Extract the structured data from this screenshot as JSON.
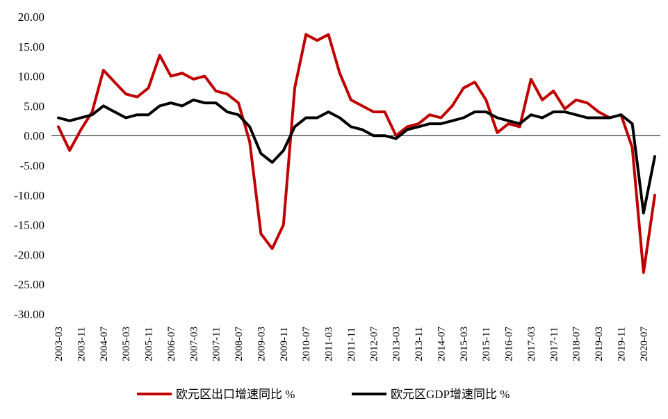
{
  "chart_data": {
    "type": "line",
    "title": "",
    "xlabel": "",
    "ylabel": "",
    "ylim": [
      -30,
      20
    ],
    "yticks": [
      "20.00",
      "15.00",
      "10.00",
      "5.00",
      "0.00",
      "-5.00",
      "-10.00",
      "-15.00",
      "-20.00",
      "-25.00",
      "-30.00"
    ],
    "ytick_values": [
      20,
      15,
      10,
      5,
      0,
      -5,
      -10,
      -15,
      -20,
      -25,
      -30
    ],
    "grid": false,
    "legend_position": "bottom",
    "x_tick_labels": [
      "2003-03",
      "2003-11",
      "2004-07",
      "2005-03",
      "2005-11",
      "2006-07",
      "2007-03",
      "2007-11",
      "2008-07",
      "2009-03",
      "2009-11",
      "2010-07",
      "2011-03",
      "2011-11",
      "2012-07",
      "2013-03",
      "2013-11",
      "2014-07",
      "2015-03",
      "2015-11",
      "2016-07",
      "2017-03",
      "2017-11",
      "2018-07",
      "2019-03",
      "2019-11",
      "2020-07"
    ],
    "x": [
      "2003-03",
      "2003-07",
      "2003-11",
      "2004-03",
      "2004-07",
      "2004-11",
      "2005-03",
      "2005-07",
      "2005-11",
      "2006-03",
      "2006-07",
      "2006-11",
      "2007-03",
      "2007-07",
      "2007-11",
      "2008-03",
      "2008-07",
      "2008-11",
      "2009-03",
      "2009-07",
      "2009-11",
      "2010-03",
      "2010-07",
      "2010-11",
      "2011-03",
      "2011-07",
      "2011-11",
      "2012-03",
      "2012-07",
      "2012-11",
      "2013-03",
      "2013-07",
      "2013-11",
      "2014-03",
      "2014-07",
      "2014-11",
      "2015-03",
      "2015-07",
      "2015-11",
      "2016-03",
      "2016-07",
      "2016-11",
      "2017-03",
      "2017-07",
      "2017-11",
      "2018-03",
      "2018-07",
      "2018-11",
      "2019-03",
      "2019-07",
      "2019-11",
      "2020-03",
      "2020-07",
      "2020-11"
    ],
    "series": [
      {
        "name": "欧元区出口增速同比 %",
        "color": "#c00000",
        "values": [
          1.5,
          -2.5,
          1.0,
          4.0,
          11.0,
          9.0,
          7.0,
          6.5,
          8.0,
          13.5,
          10.0,
          10.5,
          9.5,
          10.0,
          7.5,
          7.0,
          5.5,
          -1.0,
          -16.5,
          -19.0,
          -15.0,
          8.0,
          17.0,
          16.0,
          17.0,
          10.5,
          6.0,
          5.0,
          4.0,
          4.0,
          0.0,
          1.5,
          2.0,
          3.5,
          3.0,
          5.0,
          8.0,
          9.0,
          6.0,
          0.5,
          2.0,
          1.5,
          9.5,
          6.0,
          7.5,
          4.5,
          6.0,
          5.5,
          4.0,
          3.0,
          3.5,
          -2.0,
          -23.0,
          -10.0
        ]
      },
      {
        "name": "欧元区GDP增速同比 %",
        "color": "#000000",
        "values": [
          3.0,
          2.5,
          3.0,
          3.5,
          5.0,
          4.0,
          3.0,
          3.5,
          3.5,
          5.0,
          5.5,
          5.0,
          6.0,
          5.5,
          5.5,
          4.0,
          3.5,
          1.5,
          -3.0,
          -4.5,
          -2.5,
          1.5,
          3.0,
          3.0,
          4.0,
          3.0,
          1.5,
          1.0,
          0.0,
          0.0,
          -0.5,
          1.0,
          1.5,
          2.0,
          2.0,
          2.5,
          3.0,
          4.0,
          4.0,
          3.0,
          2.5,
          2.0,
          3.5,
          3.0,
          4.0,
          4.0,
          3.5,
          3.0,
          3.0,
          3.0,
          3.5,
          2.0,
          -13.0,
          -3.5
        ]
      }
    ]
  }
}
